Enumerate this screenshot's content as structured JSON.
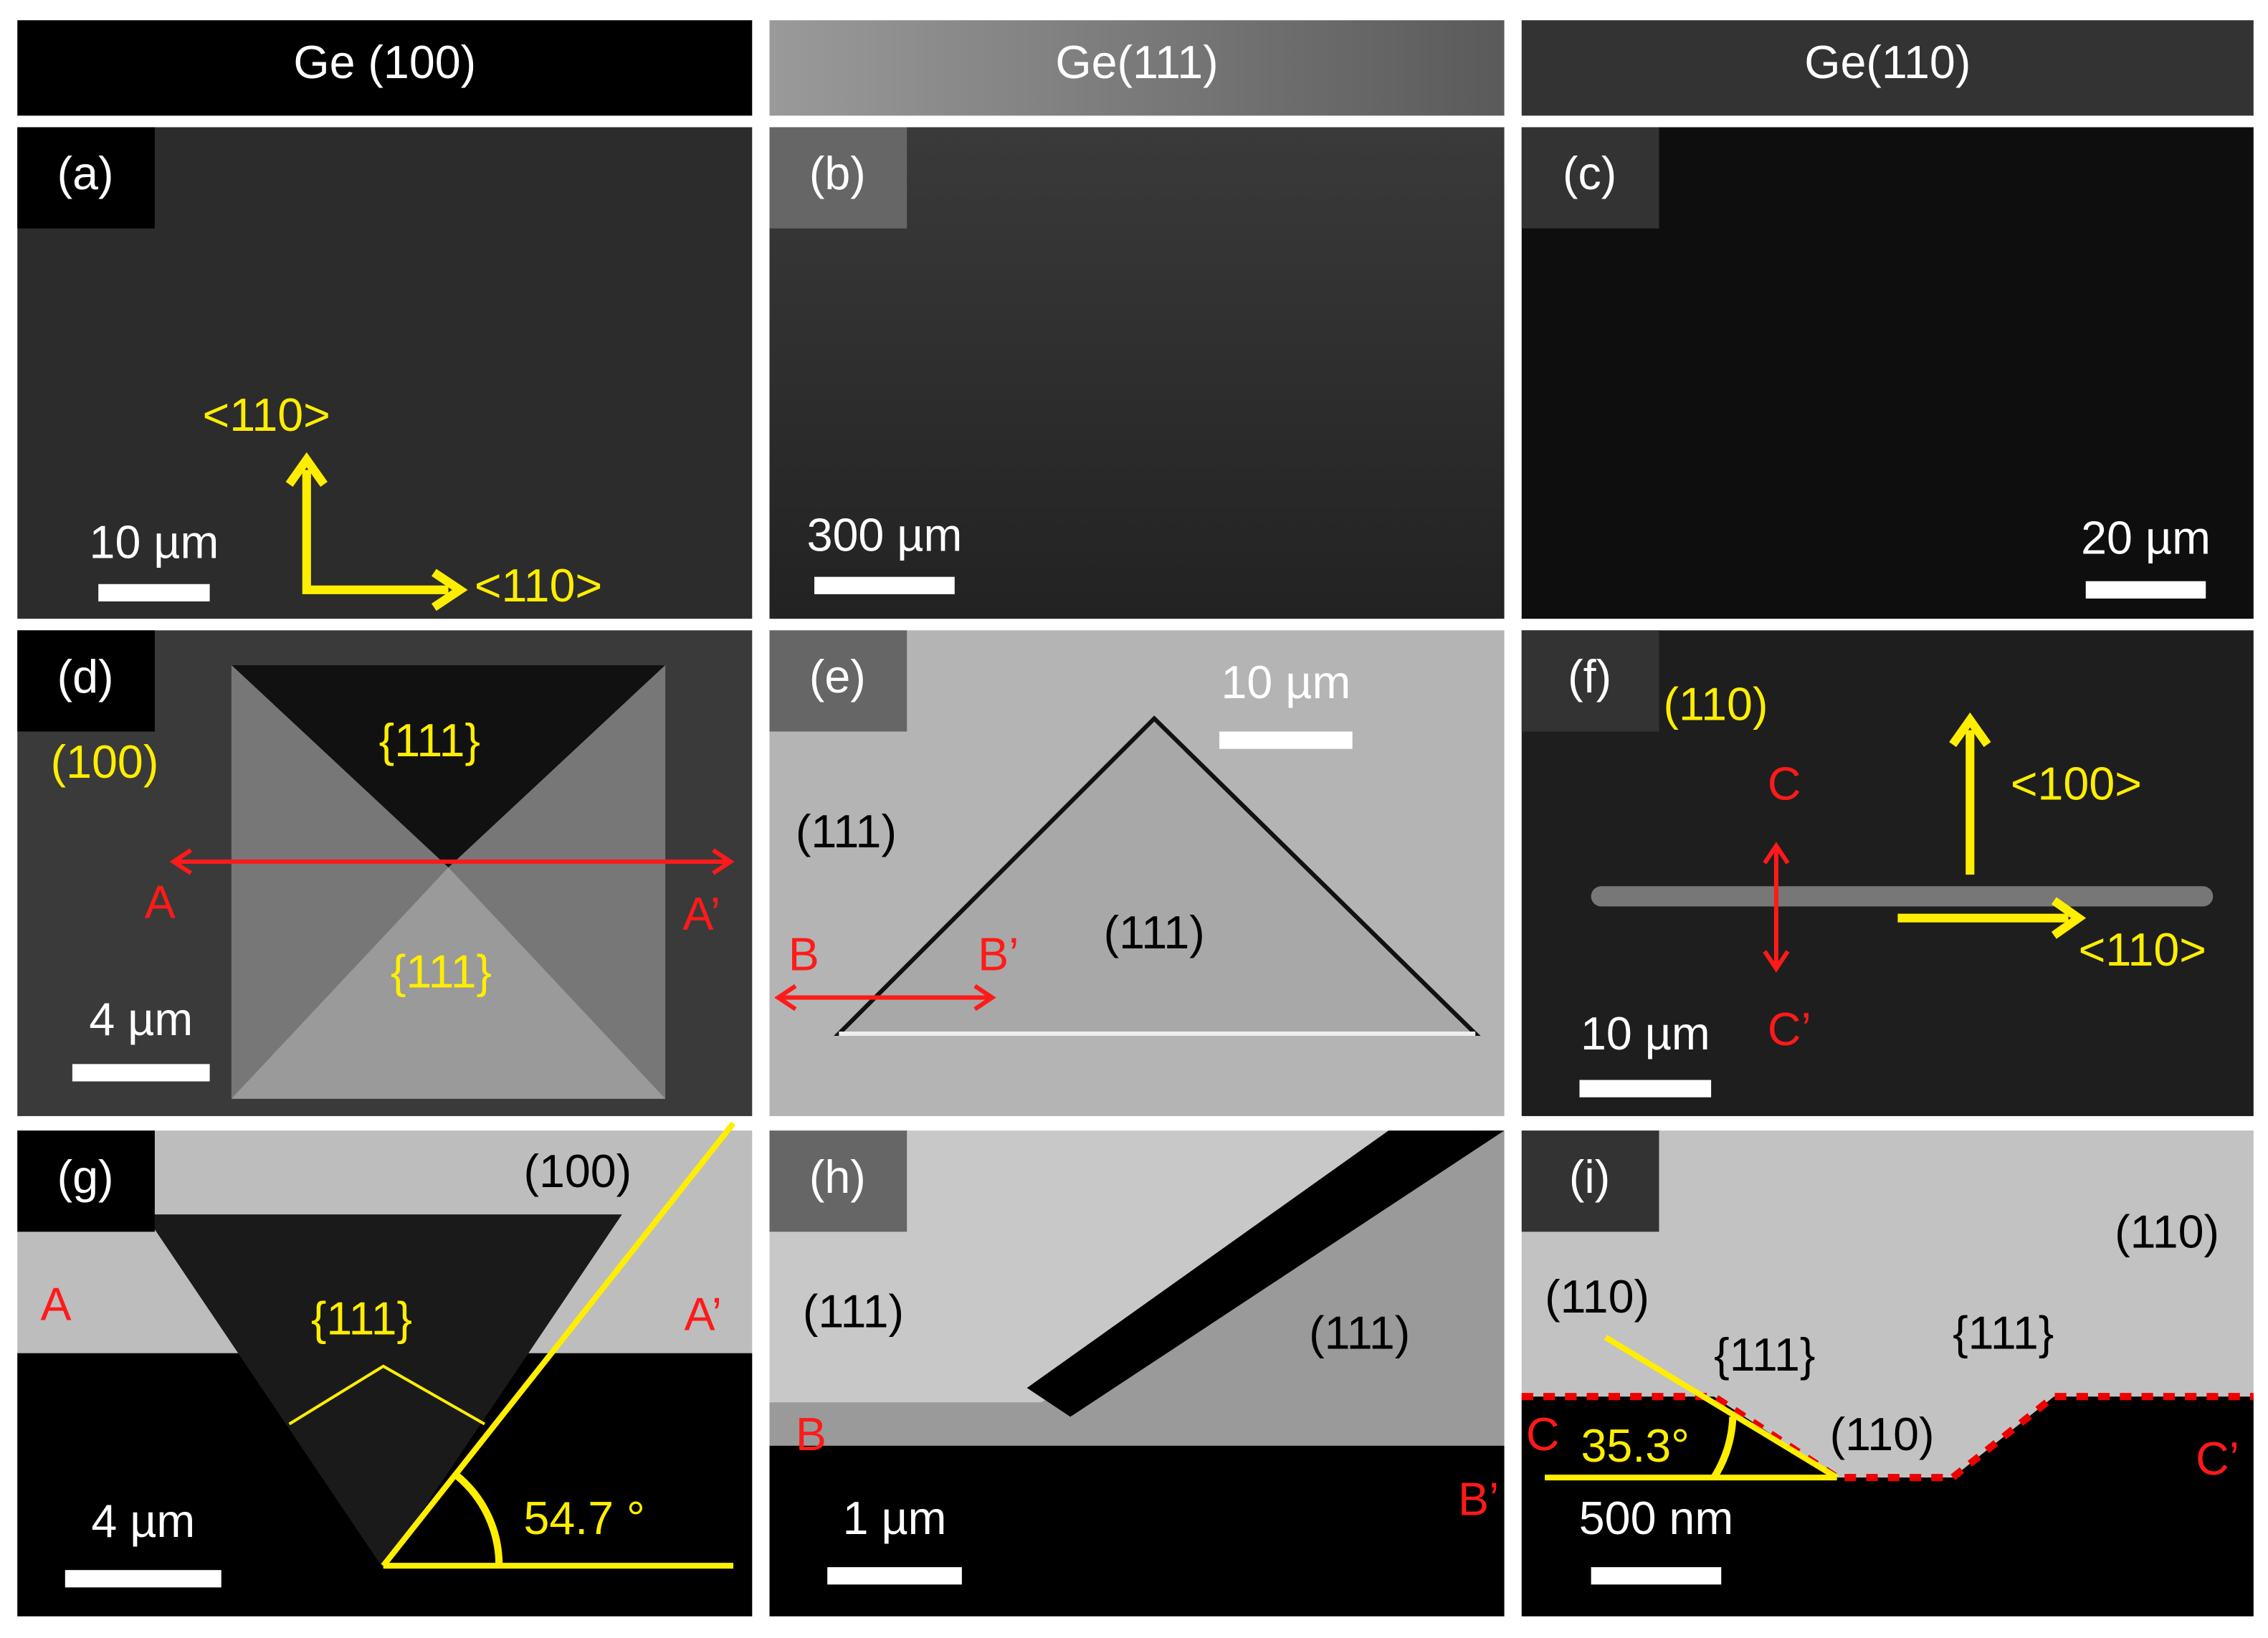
{
  "headers": [
    "Ge (100)",
    "Ge(111)",
    "Ge(110)"
  ],
  "panels": [
    {
      "label": "(a)",
      "scale_bar": "10 µm",
      "annotations": [
        "<110>",
        "<110>"
      ]
    },
    {
      "label": "(b)",
      "scale_bar": "300 µm",
      "annotations": []
    },
    {
      "label": "(c)",
      "scale_bar": "20 µm",
      "annotations": []
    },
    {
      "label": "(d)",
      "scale_bar": "4 µm",
      "annotations": [
        "(100)",
        "{111}",
        "{111}",
        "A",
        "A’"
      ]
    },
    {
      "label": "(e)",
      "scale_bar": "10 µm",
      "annotations": [
        "(111)",
        "(111)",
        "B",
        "B’"
      ]
    },
    {
      "label": "(f)",
      "scale_bar": "10 µm",
      "annotations": [
        "(110)",
        "C",
        "<100>",
        "<110>",
        "C’"
      ]
    },
    {
      "label": "(g)",
      "scale_bar": "4 µm",
      "annotations": [
        "(100)",
        "A",
        "{111}",
        "A’",
        "54.7 °"
      ]
    },
    {
      "label": "(h)",
      "scale_bar": "1 µm",
      "annotations": [
        "(111)",
        "(111)",
        "B",
        "B’"
      ]
    },
    {
      "label": "(i)",
      "scale_bar": "500 nm",
      "annotations": [
        "(110)",
        "(110)",
        "{111}",
        "{111}",
        "C",
        "35.3°",
        "(110)",
        "C’"
      ]
    }
  ]
}
